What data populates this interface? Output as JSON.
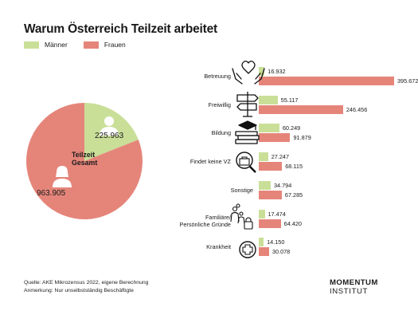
{
  "title": "Warum Österreich Teilzeit arbeitet",
  "legend": {
    "maenner": "Männer",
    "frauen": "Frauen",
    "colors": {
      "maenner": "#c9df98",
      "frauen": "#e5857a"
    }
  },
  "pie": {
    "center_label": "Teilzeit Gesamt",
    "center_label_line1": "Teilzeit",
    "center_label_line2": "Gesamt",
    "maenner_value_label": "225.963",
    "frauen_value_label": "963.905"
  },
  "chart_data": [
    {
      "type": "pie",
      "title": "",
      "categories": [
        "Männer",
        "Frauen"
      ],
      "values": [
        225963,
        963905
      ],
      "center_label": "Teilzeit Gesamt"
    },
    {
      "type": "bar",
      "orientation": "horizontal",
      "categories": [
        "Betreuung",
        "Freiwillig",
        "Bildung",
        "Findet keine VZ",
        "Sonstige",
        "Familiäre/ Persönliche Gründe",
        "Krankheit"
      ],
      "series": [
        {
          "name": "Männer",
          "values": [
            16932,
            55117,
            60249,
            27247,
            34794,
            17474,
            14150
          ],
          "labels": [
            "16.932",
            "55.117",
            "60.249",
            "27.247",
            "34.794",
            "17.474",
            "14.150"
          ]
        },
        {
          "name": "Frauen",
          "values": [
            395672,
            246456,
            91879,
            68115,
            67285,
            64420,
            30078
          ],
          "labels": [
            "395.672",
            "246.456",
            "91.879",
            "68.115",
            "67.285",
            "64.420",
            "30.078"
          ]
        }
      ],
      "xlim": [
        0,
        395672
      ]
    }
  ],
  "categories": [
    {
      "label_line1": "Betreuung",
      "label_line2": "",
      "icon": "hands-heart-icon"
    },
    {
      "label_line1": "Freiwillig",
      "label_line2": "",
      "icon": "signpost-icon"
    },
    {
      "label_line1": "Bildung",
      "label_line2": "",
      "icon": "books-graduation-cap-icon"
    },
    {
      "label_line1": "Findet keine VZ",
      "label_line2": "",
      "icon": "magnifier-briefcase-icon"
    },
    {
      "label_line1": "Sonstige",
      "label_line2": "",
      "icon": ""
    },
    {
      "label_line1": "Familiäre/",
      "label_line2": "Persönliche Gründe",
      "icon": "family-lock-icon"
    },
    {
      "label_line1": "Krankheit",
      "label_line2": "",
      "icon": "medical-cross-icon"
    }
  ],
  "source": {
    "line1": "Quelle: AKE Mikrozensus 2022, eigene Berechnung",
    "line2": "Anmerkung: Nur unselbstständig Beschäftigte"
  },
  "brand": {
    "line1": "MOMENTUM",
    "line2": "INSTITUT"
  }
}
